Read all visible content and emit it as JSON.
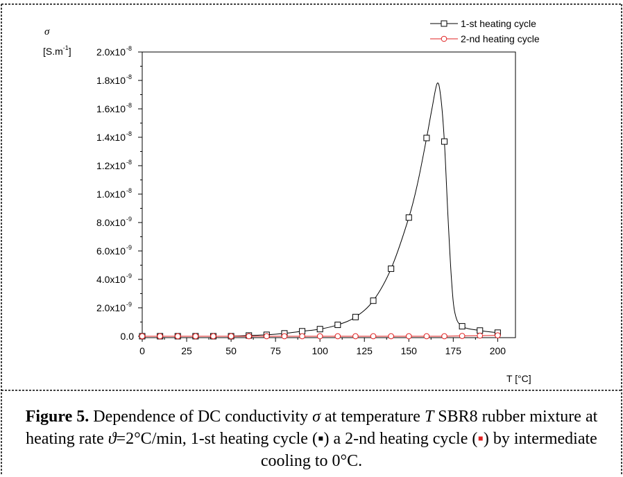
{
  "chart_data": {
    "type": "line",
    "ylabel_symbol": "σ",
    "ylabel_unit": "[S.m",
    "ylabel_unit_exp": "-1",
    "ylabel_unit_close": "]",
    "xlabel": "T [°C]",
    "xlim": [
      0,
      210
    ],
    "ylim": [
      -1e-10,
      2e-08
    ],
    "x_ticks": [
      "0",
      "25",
      "50",
      "75",
      "100",
      "125",
      "150",
      "175",
      "200"
    ],
    "x_tick_values": [
      0,
      25,
      50,
      75,
      100,
      125,
      150,
      175,
      200
    ],
    "y_ticks": [
      {
        "value": 0,
        "mant": "0.0",
        "exp": ""
      },
      {
        "value": 2e-09,
        "mant": "2.0x10",
        "exp": "-9"
      },
      {
        "value": 4e-09,
        "mant": "4.0x10",
        "exp": "-9"
      },
      {
        "value": 6e-09,
        "mant": "6.0x10",
        "exp": "-9"
      },
      {
        "value": 8e-09,
        "mant": "8.0x10",
        "exp": "-9"
      },
      {
        "value": 1e-08,
        "mant": "1.0x10",
        "exp": "-8"
      },
      {
        "value": 1.2e-08,
        "mant": "1.2x10",
        "exp": "-8"
      },
      {
        "value": 1.4e-08,
        "mant": "1.4x10",
        "exp": "-8"
      },
      {
        "value": 1.6e-08,
        "mant": "1.6x10",
        "exp": "-8"
      },
      {
        "value": 1.8e-08,
        "mant": "1.8x10",
        "exp": "-8"
      },
      {
        "value": 2e-08,
        "mant": "2.0x10",
        "exp": "-8"
      }
    ],
    "legend_position": "top-right",
    "series": [
      {
        "name": "1-st heating cycle",
        "color": "#000000",
        "marker": "square",
        "x": [
          0,
          10,
          20,
          30,
          40,
          50,
          60,
          70,
          80,
          90,
          100,
          110,
          120,
          130,
          140,
          150,
          160,
          170,
          180,
          190,
          200
        ],
        "y": [
          0,
          0,
          0,
          0,
          0,
          0,
          5e-11,
          1e-10,
          2e-10,
          3.5e-10,
          5e-10,
          8e-10,
          1.35e-09,
          2.5e-09,
          4.75e-09,
          8.35e-09,
          1.395e-08,
          1.37e-08,
          7e-10,
          4e-10,
          2.5e-10
        ],
        "curve_x": [
          0,
          10,
          20,
          30,
          40,
          50,
          60,
          70,
          80,
          90,
          100,
          110,
          120,
          130,
          140,
          150,
          155,
          160,
          163,
          166,
          168,
          170,
          172,
          174,
          176,
          180,
          190,
          200
        ],
        "curve_y": [
          0,
          0,
          0,
          0,
          0,
          0,
          5e-11,
          1e-10,
          2e-10,
          3.5e-10,
          5e-10,
          8e-10,
          1.35e-09,
          2.5e-09,
          4.75e-09,
          8.35e-09,
          1.08e-08,
          1.395e-08,
          1.6e-08,
          1.78e-08,
          1.68e-08,
          1.37e-08,
          8.5e-09,
          4e-09,
          1.6e-09,
          7e-10,
          4e-10,
          2.5e-10
        ]
      },
      {
        "name": "2-nd heating cycle",
        "color": "#e02020",
        "marker": "circle",
        "x": [
          0,
          10,
          20,
          30,
          40,
          50,
          60,
          70,
          80,
          90,
          100,
          110,
          120,
          130,
          140,
          150,
          160,
          170,
          180,
          190,
          200
        ],
        "y": [
          0,
          0,
          0,
          0,
          0,
          0,
          0,
          0,
          0,
          0,
          0,
          0,
          0,
          0,
          0,
          0,
          0,
          0,
          2e-11,
          4e-11,
          6e-11
        ]
      }
    ]
  },
  "caption": {
    "label": "Figure 5.",
    "text_1": " Dependence of DC conductivity ",
    "sigma": "σ",
    "text_2": " at temperature ",
    "t_symbol": "T",
    "text_3": " SBR8 rubber mixture at heating rate ",
    "theta": "ϑ",
    "text_4": "=2°C/min, 1-st heating cycle (",
    "marker_1": "▪",
    "text_5": ") a 2-nd heating cycle (",
    "marker_2": "▪",
    "text_6": ") by intermediate cooling to 0°C."
  }
}
